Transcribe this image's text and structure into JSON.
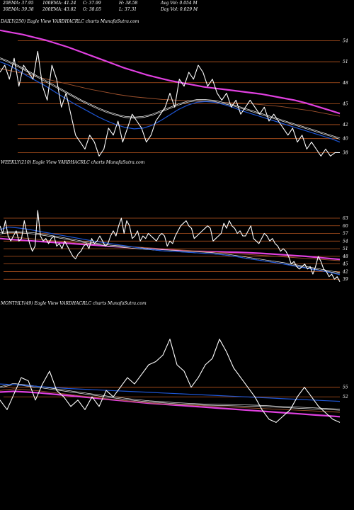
{
  "header": {
    "row1": [
      "20EMA: 37.95",
      "100EMA: 41.24",
      "C: 37.99",
      "H: 38.58",
      "Avg Vol: 0.054  M"
    ],
    "row2": [
      "30EMA: 39.38",
      "200EMA: 43.82",
      "O: 38.05",
      "L: 37.31",
      "Day Vol: 0.029 M"
    ]
  },
  "colors": {
    "background": "#000000",
    "price": "#ffffff",
    "ema_fast": "#1e56d6",
    "ema_pink": "#e040e0",
    "ema_brown": "#a0522d",
    "grid": "#b8561f"
  },
  "chart_data": [
    {
      "type": "line",
      "title": "DAILY(250) Eagle  View  VARDHACRLC charts MunafaSutra.com",
      "ylabels": [
        "54",
        "51",
        "48",
        "45",
        "42",
        "40",
        "38"
      ],
      "series": [
        {
          "values": [
            49.5,
            50.5,
            48.5,
            51.5,
            47.5,
            50.5,
            49.5,
            48.5,
            52.5,
            47.5,
            45.5,
            50.5,
            48.5,
            44.5,
            46.5,
            43.5,
            40.5,
            39.5,
            38.5,
            40.5,
            39.5,
            37.5,
            38.5,
            41.5,
            40.5,
            42.5,
            39.5,
            41.5,
            43.5,
            42.5,
            41.5,
            39.5,
            40.5,
            42.5,
            43.5,
            44.5,
            46.5,
            44.5,
            48.5,
            47.5,
            49.5,
            48.5,
            50.5,
            49.5,
            47.5,
            48.5,
            46.5,
            45.5,
            46.5,
            44.5,
            45.5,
            43.5,
            44.5,
            45.5,
            44.5,
            43.5,
            44.5,
            42.5,
            43.5,
            42.5,
            41.5,
            40.5,
            41.5,
            39.5,
            40.5,
            38.5,
            39.5,
            38.5,
            37.5,
            38.5,
            37.5,
            38.0,
            37.99
          ]
        },
        {
          "values": [
            51.0,
            50.5,
            49.8,
            49.0,
            48.3,
            47.6,
            46.8,
            46.0,
            45.2,
            44.5,
            43.8,
            43.1,
            42.5,
            42.0,
            41.6,
            41.4,
            41.5,
            41.9,
            42.6,
            43.4,
            44.2,
            44.8,
            45.2,
            45.3,
            45.2,
            44.9,
            44.5,
            44.0,
            43.6,
            43.2,
            42.8,
            42.4,
            42.0,
            41.6,
            41.2,
            40.8,
            40.4,
            40.0,
            39.5
          ]
        },
        {
          "values": [
            51.5,
            51.0,
            50.4,
            49.7,
            49.0,
            48.3,
            47.6,
            46.9,
            46.2,
            45.5,
            44.9,
            44.3,
            43.8,
            43.4,
            43.1,
            43.0,
            43.1,
            43.4,
            43.9,
            44.4,
            44.9,
            45.3,
            45.5,
            45.5,
            45.4,
            45.1,
            44.8,
            44.4,
            44.0,
            43.6,
            43.2,
            42.8,
            42.4,
            42.0,
            41.6,
            41.2,
            40.8,
            40.4,
            40.0
          ]
        },
        {
          "values": [
            50.0,
            49.6,
            49.1,
            48.6,
            48.1,
            47.6,
            47.1,
            46.7,
            46.3,
            46.0,
            45.8,
            45.6,
            45.5,
            45.4,
            45.3,
            45.2,
            45.1,
            45.0,
            44.8,
            44.6,
            44.3,
            44.0,
            43.6,
            43.2
          ]
        },
        {
          "values": [
            55.5,
            55.2,
            54.9,
            54.5,
            54.1,
            53.6,
            53.1,
            52.5,
            51.9,
            51.3,
            50.7,
            50.1,
            49.6,
            49.1,
            48.7,
            48.3,
            48.0,
            47.7,
            47.4,
            47.2,
            47.0,
            46.8,
            46.6,
            46.4,
            46.1,
            45.8,
            45.5,
            45.1,
            44.6,
            44.1,
            43.6
          ]
        }
      ]
    },
    {
      "type": "line",
      "title": "WEEKLY(210) Eagle  View  VARDHACRLC charts MunafaSutra.com",
      "ylabels": [
        "63",
        "60",
        "57",
        "54",
        "51",
        "48",
        "45",
        "42",
        "39"
      ],
      "series": [
        {
          "values": [
            60,
            57,
            62,
            56,
            54,
            56,
            58,
            54,
            55,
            62,
            57,
            53,
            50,
            52,
            66,
            56,
            54,
            55,
            53,
            55,
            56,
            52,
            53,
            51,
            54,
            52,
            50,
            48,
            47,
            49,
            50,
            52,
            53,
            51,
            55,
            53,
            54,
            56,
            54,
            52,
            53,
            56,
            58,
            56,
            60,
            63,
            57,
            62,
            60,
            55,
            56,
            58,
            54,
            56,
            55,
            57,
            56,
            55,
            54,
            56,
            57,
            56,
            52,
            54,
            53,
            56,
            58,
            60,
            61,
            62,
            60,
            59,
            55,
            56,
            57,
            58,
            59,
            60,
            59,
            54,
            55,
            56,
            57,
            61,
            59,
            62,
            60,
            59,
            57,
            58,
            56,
            56,
            58,
            60,
            55,
            54,
            53,
            55,
            57,
            56,
            54,
            55,
            53,
            52,
            50,
            51,
            50,
            48,
            45,
            46,
            44,
            43,
            44,
            45,
            43,
            44,
            41,
            44,
            48,
            46,
            43,
            42,
            40,
            41,
            39,
            40,
            38
          ]
        },
        {
          "values": [
            58.5,
            59.5,
            59.2,
            58.8,
            58.2,
            57.6,
            57.0,
            56.4,
            55.8,
            55.2,
            54.6,
            54.0,
            53.5,
            53.0,
            52.5,
            52.0,
            51.5,
            51.0,
            50.6,
            50.2,
            50.0,
            49.8,
            49.6,
            49.4,
            49.2,
            49.0,
            48.7,
            48.3,
            47.8,
            47.2,
            46.7,
            46.2,
            45.7,
            45.2,
            44.6,
            44.0,
            43.4,
            42.8,
            42.2,
            41.5,
            40.8
          ]
        },
        {
          "values": [
            57.0,
            57.5,
            57.5,
            57.3,
            57.0,
            56.5,
            56.0,
            55.4,
            54.8,
            54.2,
            53.6,
            53.1,
            52.6,
            52.2,
            51.9,
            51.6,
            51.3,
            51.0,
            50.7,
            50.4,
            50.2,
            50.0,
            49.8,
            49.6,
            49.4,
            49.2,
            48.9,
            48.5,
            48.0,
            47.5,
            47.0,
            46.5,
            46.0,
            45.5,
            45.0,
            44.4,
            43.8,
            43.2,
            42.6,
            42.0,
            41.4
          ]
        },
        {
          "values": [
            56.0,
            55.6,
            55.2,
            54.8,
            54.4,
            54.0,
            53.6,
            53.2,
            52.9,
            52.6,
            52.3,
            52.0,
            51.7,
            51.4,
            51.1,
            50.8,
            50.5,
            50.2,
            49.9,
            49.6,
            49.3,
            49.0,
            48.7,
            48.4,
            48.1,
            47.8,
            47.5,
            47.2,
            46.9,
            46.6,
            46.3
          ]
        },
        {
          "values": [
            55.0,
            54.6,
            54.3,
            54.0,
            53.7,
            53.4,
            53.1,
            52.8,
            52.5,
            52.2,
            51.9,
            51.6,
            51.3,
            51.0,
            50.7,
            50.4,
            50.2,
            50.0,
            49.9,
            49.8,
            49.7,
            49.6,
            49.4,
            49.2,
            48.9,
            48.6,
            48.3,
            48.0,
            47.6,
            47.2,
            46.8
          ]
        }
      ]
    },
    {
      "type": "line",
      "title": "MONTHLY(49) Eagle  View  VARDHACRLC charts MunafaSutra.com",
      "ylabels": [
        "55",
        "52"
      ],
      "series": [
        {
          "values": [
            51,
            48,
            53,
            58,
            57,
            51,
            56,
            60,
            54,
            52,
            49,
            51,
            48,
            52,
            49,
            54,
            52,
            55,
            58,
            56,
            59,
            62,
            63,
            65,
            70,
            62,
            60,
            55,
            58,
            62,
            64,
            70,
            66,
            61,
            58,
            55,
            52,
            48,
            45,
            44,
            46,
            48,
            52,
            55,
            52,
            49,
            47,
            45,
            44
          ]
        },
        {
          "values": [
            56.0,
            55.8,
            55.5,
            55.2,
            54.9,
            54.6,
            54.4,
            54.2,
            54.0,
            53.8,
            53.6,
            53.4,
            53.2,
            53.0,
            52.8,
            52.6,
            52.4,
            52.2,
            52.0,
            51.8,
            51.6,
            51.4,
            51.2,
            51.0,
            50.8,
            50.6
          ]
        },
        {
          "values": [
            55.0,
            56.0,
            55.5,
            55.0,
            54.4,
            53.8,
            53.2,
            52.6,
            52.0,
            51.5,
            51.0,
            50.6,
            50.3,
            50.0,
            49.8,
            49.6,
            49.5,
            49.4,
            49.3,
            49.2,
            49.0,
            48.8,
            48.6,
            48.4,
            48.2,
            48.0
          ]
        },
        {
          "values": [
            54.0,
            54.5,
            54.2,
            53.8,
            53.3,
            52.8,
            52.3,
            51.8,
            51.3,
            50.9,
            50.5,
            50.1,
            49.8,
            49.6,
            49.4,
            49.2,
            49.0,
            48.8,
            48.6,
            48.4,
            48.2,
            48.0,
            47.8,
            47.6,
            47.4,
            47.2
          ]
        },
        {
          "values": [
            53.5,
            53.7,
            53.5,
            53.2,
            52.8,
            52.4,
            52.0,
            51.6,
            51.2,
            50.8,
            50.4,
            50.0,
            49.7,
            49.4,
            49.1,
            48.8,
            48.5,
            48.2,
            47.9,
            47.6,
            47.3,
            47.0,
            46.7,
            46.4,
            46.1,
            45.8
          ]
        }
      ]
    }
  ]
}
